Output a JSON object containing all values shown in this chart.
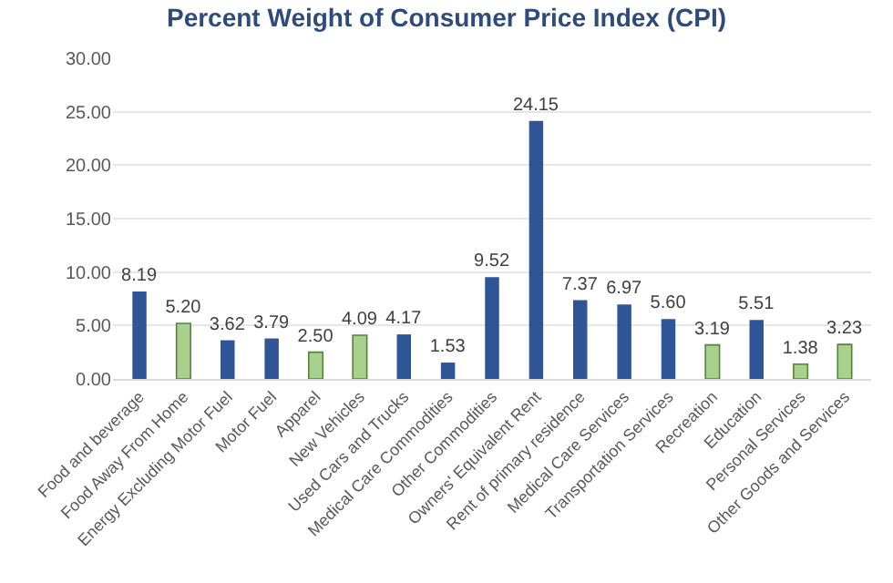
{
  "chart_data": {
    "type": "bar",
    "title": "Percent Weight of Consumer Price Index (CPI)",
    "categories": [
      "Food and beverage",
      "Food Away From Home",
      "Energy Excluding Motor Fuel",
      "Motor Fuel",
      "Apparel",
      "New Vehicles",
      "Used Cars and Trucks",
      "Medical Care Commodities",
      "Other Commodities",
      "Owners' Equivalent Rent",
      "Rent of primary residence",
      "Medical Care Services",
      "Transportation Services",
      "Recreation",
      "Education",
      "Personal Services",
      "Other Goods and Services"
    ],
    "values": [
      8.19,
      5.2,
      3.62,
      3.79,
      2.5,
      4.09,
      4.17,
      1.53,
      9.52,
      24.15,
      7.37,
      6.97,
      5.6,
      3.19,
      5.51,
      1.38,
      3.23
    ],
    "value_labels": [
      "8.19",
      "5.20",
      "3.62",
      "3.79",
      "2.50",
      "4.09",
      "4.17",
      "1.53",
      "9.52",
      "24.15",
      "7.37",
      "6.97",
      "5.60",
      "3.19",
      "5.51",
      "1.38",
      "3.23"
    ],
    "colors": [
      "#2f5597",
      "#a9d18e",
      "#2f5597",
      "#2f5597",
      "#a9d18e",
      "#a9d18e",
      "#2f5597",
      "#2f5597",
      "#2f5597",
      "#2f5597",
      "#2f5597",
      "#2f5597",
      "#2f5597",
      "#a9d18e",
      "#2f5597",
      "#a9d18e",
      "#a9d18e"
    ],
    "ylim": [
      0,
      30
    ],
    "yticks": [
      {
        "value": 0,
        "label": "0.00"
      },
      {
        "value": 5,
        "label": "5.00"
      },
      {
        "value": 10,
        "label": "10.00"
      },
      {
        "value": 15,
        "label": "15.00"
      },
      {
        "value": 20,
        "label": "20.00"
      },
      {
        "value": 25,
        "label": "25.00"
      },
      {
        "value": 30,
        "label": "30.00"
      }
    ],
    "grid": "y"
  }
}
